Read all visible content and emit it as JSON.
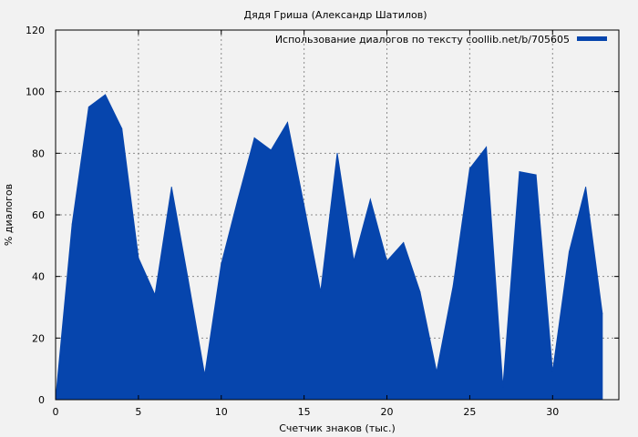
{
  "chart_data": {
    "type": "area",
    "title": "Дядя Гриша (Александр Шатилов)",
    "xlabel": "Счетчик знаков (тыс.)",
    "ylabel": "% диалогов",
    "xlim": [
      0,
      34
    ],
    "ylim": [
      0,
      120
    ],
    "xticks": [
      0,
      5,
      10,
      15,
      20,
      25,
      30
    ],
    "yticks": [
      0,
      20,
      40,
      60,
      80,
      100,
      120
    ],
    "grid": true,
    "legend_position": "top-right",
    "series": [
      {
        "name": "Использование диалогов по тексту coollib.net/b/705605",
        "color": "#0645ad",
        "x": [
          0,
          1,
          2,
          3,
          4,
          5,
          6,
          7,
          8,
          9,
          10,
          11,
          12,
          13,
          14,
          15,
          16,
          17,
          18,
          19,
          20,
          21,
          22,
          23,
          24,
          25,
          26,
          27,
          28,
          29,
          30,
          31,
          32,
          33
        ],
        "y": [
          0,
          57,
          95,
          99,
          88,
          46,
          34,
          69,
          39,
          8,
          44,
          65,
          85,
          81,
          90,
          63,
          35,
          80,
          45,
          65,
          45,
          51,
          35,
          9,
          37,
          75,
          82,
          4,
          74,
          73,
          9,
          48,
          69,
          28
        ]
      }
    ]
  }
}
